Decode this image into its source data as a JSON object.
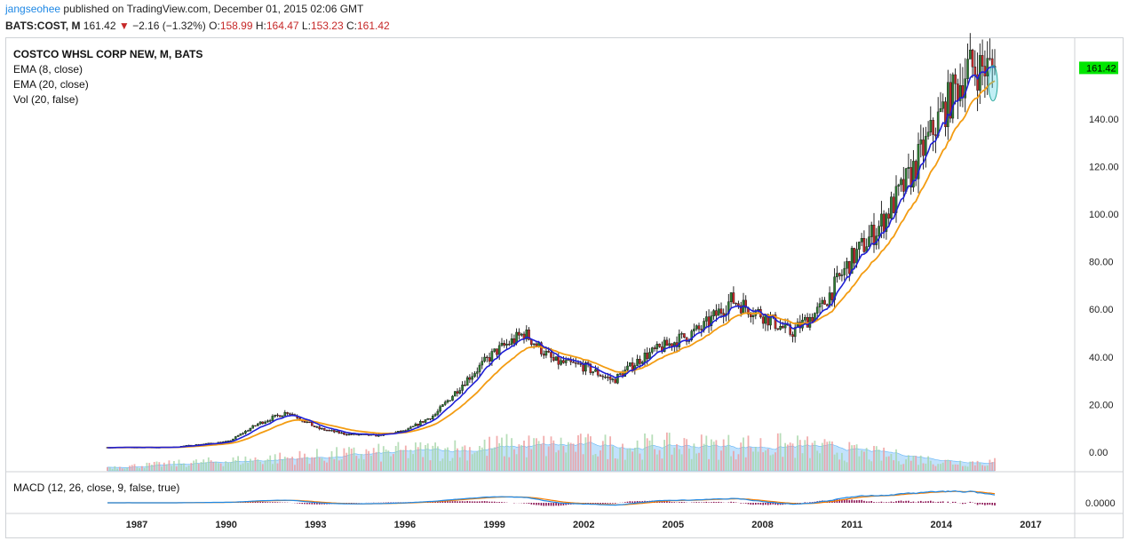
{
  "header": {
    "author": "jangseohee",
    "published_text": " published on TradingView.com, December 01, 2015 02:06 GMT",
    "symbol": "BATS:COST, M",
    "last": "161.42",
    "change": "−2.16 (−1.32%)",
    "o_label": "O:",
    "o_val": "158.99",
    "h_label": "H:",
    "h_val": "164.47",
    "l_label": "L:",
    "l_val": "153.23",
    "c_label": "C:",
    "c_val": "161.42"
  },
  "legend": {
    "title": "COSTCO WHSL CORP NEW, M, BATS",
    "ema8": "EMA (8, close)",
    "ema20": "EMA (20, close)",
    "vol": "Vol (20, false)"
  },
  "macd_label": "MACD (12, 26, close, 9, false, true)",
  "colors": {
    "up": "#2e7d32",
    "down": "#c62828",
    "ema8": "#1f1fd6",
    "ema20": "#f39c12",
    "vol_up": "#a5d6a7",
    "vol_down": "#ef9a9a",
    "vol_ma": "#90caf9",
    "macd": "#1e88e5",
    "signal": "#f57c00",
    "hist": "#880e4f",
    "price_tag": "#00e600"
  },
  "chart_data": [
    {
      "type": "candlestick",
      "title": "COSTCO WHSL CORP NEW, M, BATS",
      "y_axis_ticks": [
        "0.00",
        "20.00",
        "40.00",
        "60.00",
        "80.00",
        "100.00",
        "120.00",
        "140.00"
      ],
      "x_axis_ticks": [
        "1987",
        "1990",
        "1993",
        "1996",
        "1999",
        "2002",
        "2005",
        "2008",
        "2011",
        "2014",
        "2017"
      ],
      "ylim": [
        0,
        170
      ],
      "last_price_label": "161.42",
      "approx_close_by_year": {
        "1986": 2.0,
        "1988": 2.0,
        "1990": 4.5,
        "1991": 12,
        "1992": 17,
        "1993": 10,
        "1994": 7.5,
        "1995": 7,
        "1996": 9,
        "1997": 16,
        "1998": 30,
        "1999": 42,
        "2000": 50,
        "2001": 38,
        "2002": 36,
        "2003": 30,
        "2004": 40,
        "2005": 46,
        "2006": 52,
        "2007": 64,
        "2008": 58,
        "2009": 50,
        "2010": 60,
        "2011": 80,
        "2012": 95,
        "2013": 115,
        "2014": 140,
        "2015": 161.42
      },
      "series": [
        {
          "name": "EMA (8, close)"
        },
        {
          "name": "EMA (20, close)"
        },
        {
          "name": "Vol (20, false)"
        }
      ]
    },
    {
      "type": "line",
      "title": "MACD (12, 26, close, 9, false, true)",
      "y_axis_ticks": [
        "0.0000"
      ]
    }
  ]
}
